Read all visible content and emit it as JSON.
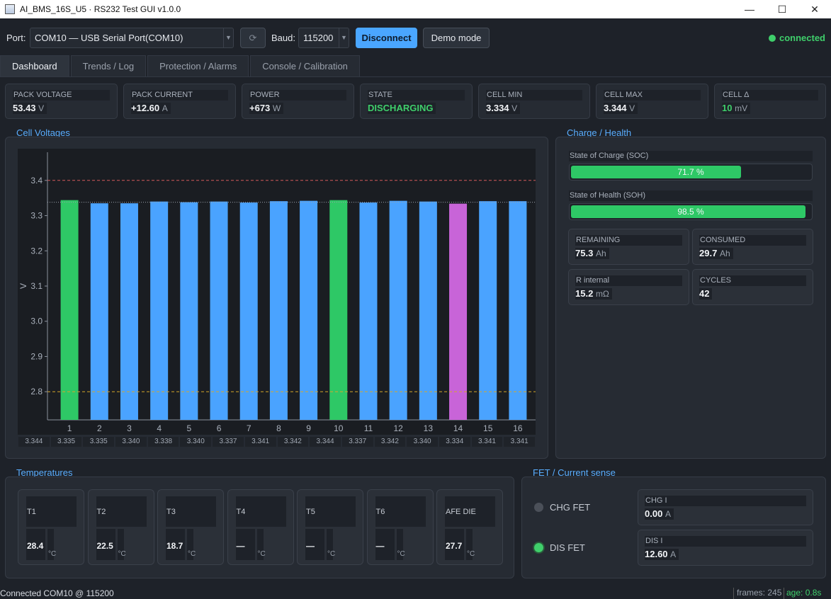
{
  "window": {
    "title": "AI_BMS_16S_U5 · RS232 Test GUI  v1.0.0",
    "minimize": "—",
    "maximize": "☐",
    "close": "✕"
  },
  "toolbar": {
    "port_label": "Port:",
    "port_value": "COM10 — USB Serial Port(COM10)",
    "refresh_glyph": "⟳",
    "baud_label": "Baud:",
    "baud_value": "115200",
    "disconnect_label": "Disconnect",
    "demo_label": "Demo mode",
    "status": "connected"
  },
  "tabs": [
    {
      "label": "Dashboard",
      "active": true
    },
    {
      "label": "Trends / Log"
    },
    {
      "label": "Protection / Alarms"
    },
    {
      "label": "Console / Calibration"
    }
  ],
  "stats": [
    {
      "caption": "PACK VOLTAGE",
      "value": "53.43",
      "unit": "V"
    },
    {
      "caption": "PACK CURRENT",
      "value": "+12.60",
      "unit": "A"
    },
    {
      "caption": "POWER",
      "value": "+673",
      "unit": "W"
    },
    {
      "caption": "STATE",
      "value": "DISCHARGING",
      "unit": ""
    },
    {
      "caption": "CELL MIN",
      "value": "3.334",
      "unit": "V"
    },
    {
      "caption": "CELL MAX",
      "value": "3.344",
      "unit": "V"
    },
    {
      "caption": "CELL Δ",
      "value": "10",
      "unit": "mV"
    }
  ],
  "sections": {
    "cells": "Cell Voltages",
    "charge": "Charge / Health",
    "temps": "Temperatures",
    "fet": "FET / Current sense"
  },
  "chart_data": {
    "type": "bar",
    "categories": [
      "1",
      "2",
      "3",
      "4",
      "5",
      "6",
      "7",
      "8",
      "9",
      "10",
      "11",
      "12",
      "13",
      "14",
      "15",
      "16"
    ],
    "values": [
      3.344,
      3.335,
      3.335,
      3.34,
      3.338,
      3.34,
      3.337,
      3.341,
      3.342,
      3.344,
      3.337,
      3.342,
      3.34,
      3.334,
      3.341,
      3.341
    ],
    "value_labels": [
      "3.344",
      "3.335",
      "3.335",
      "3.340",
      "3.338",
      "3.340",
      "3.337",
      "3.341",
      "3.342",
      "3.344",
      "3.337",
      "3.342",
      "3.340",
      "3.334",
      "3.341",
      "3.341"
    ],
    "bar_colors": [
      "#2ec866",
      "#4aa3ff",
      "#4aa3ff",
      "#4aa3ff",
      "#4aa3ff",
      "#4aa3ff",
      "#4aa3ff",
      "#4aa3ff",
      "#4aa3ff",
      "#2ec866",
      "#4aa3ff",
      "#4aa3ff",
      "#4aa3ff",
      "#c864d8",
      "#4aa3ff",
      "#4aa3ff"
    ],
    "ylabel": "V",
    "ylim": [
      2.72,
      3.48
    ],
    "yticks": [
      "2.8",
      "2.9",
      "3.0",
      "3.1",
      "3.2",
      "3.3",
      "3.4"
    ],
    "reference_lines": [
      {
        "value": 3.4,
        "color": "#d35a5a",
        "style": "dashed"
      },
      {
        "value": 3.338,
        "color": "#9aa1ac",
        "style": "dotted"
      },
      {
        "value": 2.8,
        "color": "#d4a62a",
        "style": "dashed"
      }
    ],
    "grid": false,
    "legend": "none"
  },
  "charge": {
    "soc_label": "State of Charge (SOC)",
    "soc_value": 71.7,
    "soc_text": "71.7 %",
    "soh_label": "State of Health (SOH)",
    "soh_value": 98.5,
    "soh_text": "98.5 %",
    "cards": [
      {
        "caption": "REMAINING",
        "value": "75.3",
        "unit": "Ah"
      },
      {
        "caption": "CONSUMED",
        "value": "29.7",
        "unit": "Ah"
      },
      {
        "caption": "R internal",
        "value": "15.2",
        "unit": "mΩ"
      },
      {
        "caption": "CYCLES",
        "value": "42",
        "unit": ""
      }
    ]
  },
  "temperatures": [
    {
      "label": "T1",
      "value": "28.4",
      "unit": "°C"
    },
    {
      "label": "T2",
      "value": "22.5",
      "unit": "°C"
    },
    {
      "label": "T3",
      "value": "18.7",
      "unit": "°C"
    },
    {
      "label": "T4",
      "value": "—",
      "unit": "°C"
    },
    {
      "label": "T5",
      "value": "—",
      "unit": "°C"
    },
    {
      "label": "T6",
      "value": "—",
      "unit": "°C"
    },
    {
      "label": "AFE DIE",
      "value": "27.7",
      "unit": "°C"
    }
  ],
  "fet": {
    "chg_fet_label": "CHG FET",
    "chg_fet_on": false,
    "dis_fet_label": "DIS FET",
    "dis_fet_on": true,
    "chg_i_caption": "CHG I",
    "chg_i_value": "0.00",
    "chg_i_unit": "A",
    "dis_i_caption": "DIS I",
    "dis_i_value": "12.60",
    "dis_i_unit": "A"
  },
  "statusbar": {
    "message": "Connected COM10 @ 115200",
    "frames": "frames: 245",
    "age": "age: 0.8s"
  }
}
